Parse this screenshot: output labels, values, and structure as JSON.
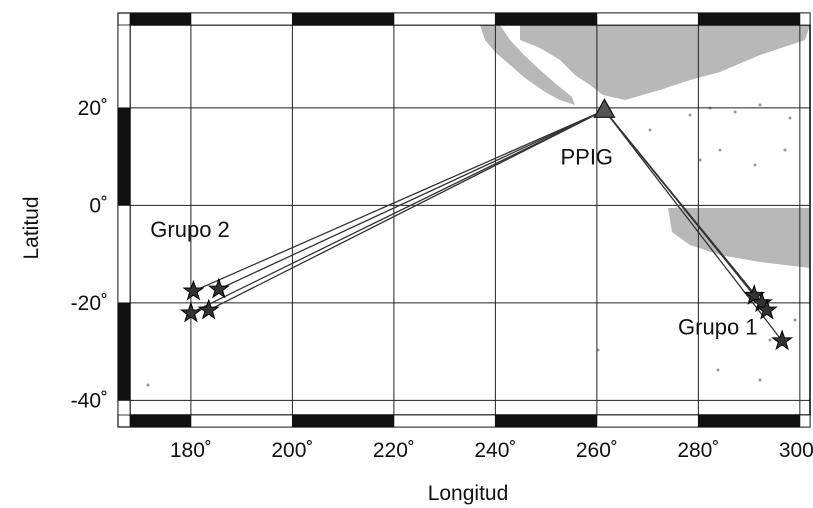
{
  "axes": {
    "xlabel": "Longitud",
    "ylabel": "Latitud",
    "xlim": [
      168,
      302
    ],
    "ylim": [
      -43,
      37
    ],
    "x_ticks": [
      {
        "value": 180,
        "label": "180˚"
      },
      {
        "value": 200,
        "label": "200˚"
      },
      {
        "value": 220,
        "label": "220˚"
      },
      {
        "value": 240,
        "label": "240˚"
      },
      {
        "value": 260,
        "label": "260˚"
      },
      {
        "value": 280,
        "label": "280˚"
      },
      {
        "value": 300,
        "label": "300˚"
      }
    ],
    "y_ticks": [
      {
        "value": 20,
        "label": "20˚"
      },
      {
        "value": 0,
        "label": "0˚"
      },
      {
        "value": -20,
        "label": "-20˚"
      },
      {
        "value": -40,
        "label": "-40˚"
      }
    ],
    "gridlines": true
  },
  "station": {
    "label": "PPIG",
    "lon": 261.5,
    "lat": 19.5
  },
  "annotations": [
    {
      "text": "Grupo 2",
      "lon": 172,
      "lat": -6.5
    },
    {
      "text": "Grupo 1",
      "lon": 276,
      "lat": -26.5
    }
  ],
  "events": {
    "group2": [
      {
        "lon": 180.5,
        "lat": -17.6
      },
      {
        "lon": 185.5,
        "lat": -17.2
      },
      {
        "lon": 180.0,
        "lat": -22.1
      },
      {
        "lon": 183.5,
        "lat": -21.5
      }
    ],
    "group1": [
      {
        "lon": 291.0,
        "lat": -18.5
      },
      {
        "lon": 292.5,
        "lat": -20.0
      },
      {
        "lon": 293.5,
        "lat": -21.5
      },
      {
        "lon": 296.5,
        "lat": -27.8
      }
    ]
  },
  "colors": {
    "frame": "#111111",
    "land": "#b8b8b8",
    "paths": "#333333"
  }
}
